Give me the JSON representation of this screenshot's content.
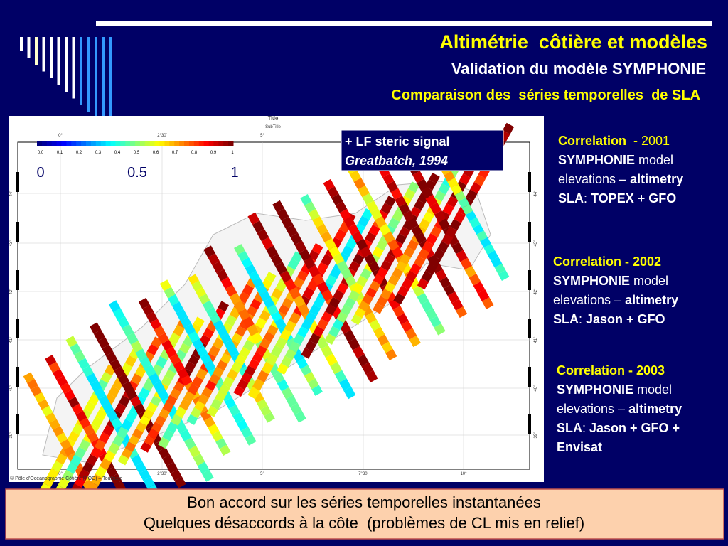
{
  "header": {
    "title": "Altimétrie  côtière et modèles",
    "subtitle": "Validation du modèle SYMPHONIE",
    "caption": "Comparaison des  séries temporelles  de SLA"
  },
  "map": {
    "title": "Title",
    "subtitle": "SubTitle",
    "colorbar_ticks": [
      "0.0",
      "0.1",
      "0.2",
      "0.3",
      "0.4",
      "0.5",
      "0.6",
      "0.7",
      "0.8",
      "0.9",
      "1"
    ],
    "scale_labels": [
      "0",
      "0.5",
      "1"
    ],
    "lon_labels": [
      "0°",
      "2°30'",
      "5°",
      "7°30'",
      "10°"
    ],
    "lat_labels": [
      "44°",
      "43°",
      "42°",
      "41°",
      "40°",
      "39°"
    ],
    "credit": "© Pôle d'Océanographie Côtière (POC) – Toulouse"
  },
  "annotation": {
    "line1": "+ LF steric signal",
    "line2": "Greatbatch, 1994"
  },
  "notes": [
    {
      "lines": [
        [
          "Correlation",
          "  - 2001"
        ],
        [
          "SYMPHONIE",
          " model"
        ],
        [
          "elevations – ",
          "altimetry"
        ],
        [
          "SLA",
          ": ",
          "TOPEX + GFO"
        ]
      ]
    },
    {
      "lines": [
        [
          "Correlation - 2002"
        ],
        [
          "SYMPHONIE",
          " model"
        ],
        [
          "elevations – ",
          "altimetry"
        ],
        [
          "SLA",
          ": ",
          "Jason + GFO"
        ]
      ]
    },
    {
      "lines": [
        [
          "Correlation - 2003"
        ],
        [
          "SYMPHONIE",
          " model"
        ],
        [
          "elevations – ",
          "altimetry"
        ],
        [
          "SLA",
          ": ",
          "Jason + GFO +"
        ],
        [
          "Envisat"
        ]
      ]
    }
  ],
  "footer": {
    "line1": "Bon accord sur les séries temporelles instantanées",
    "line2": "Quelques désaccords à la côte  (problèmes de CL mis en relief)"
  }
}
